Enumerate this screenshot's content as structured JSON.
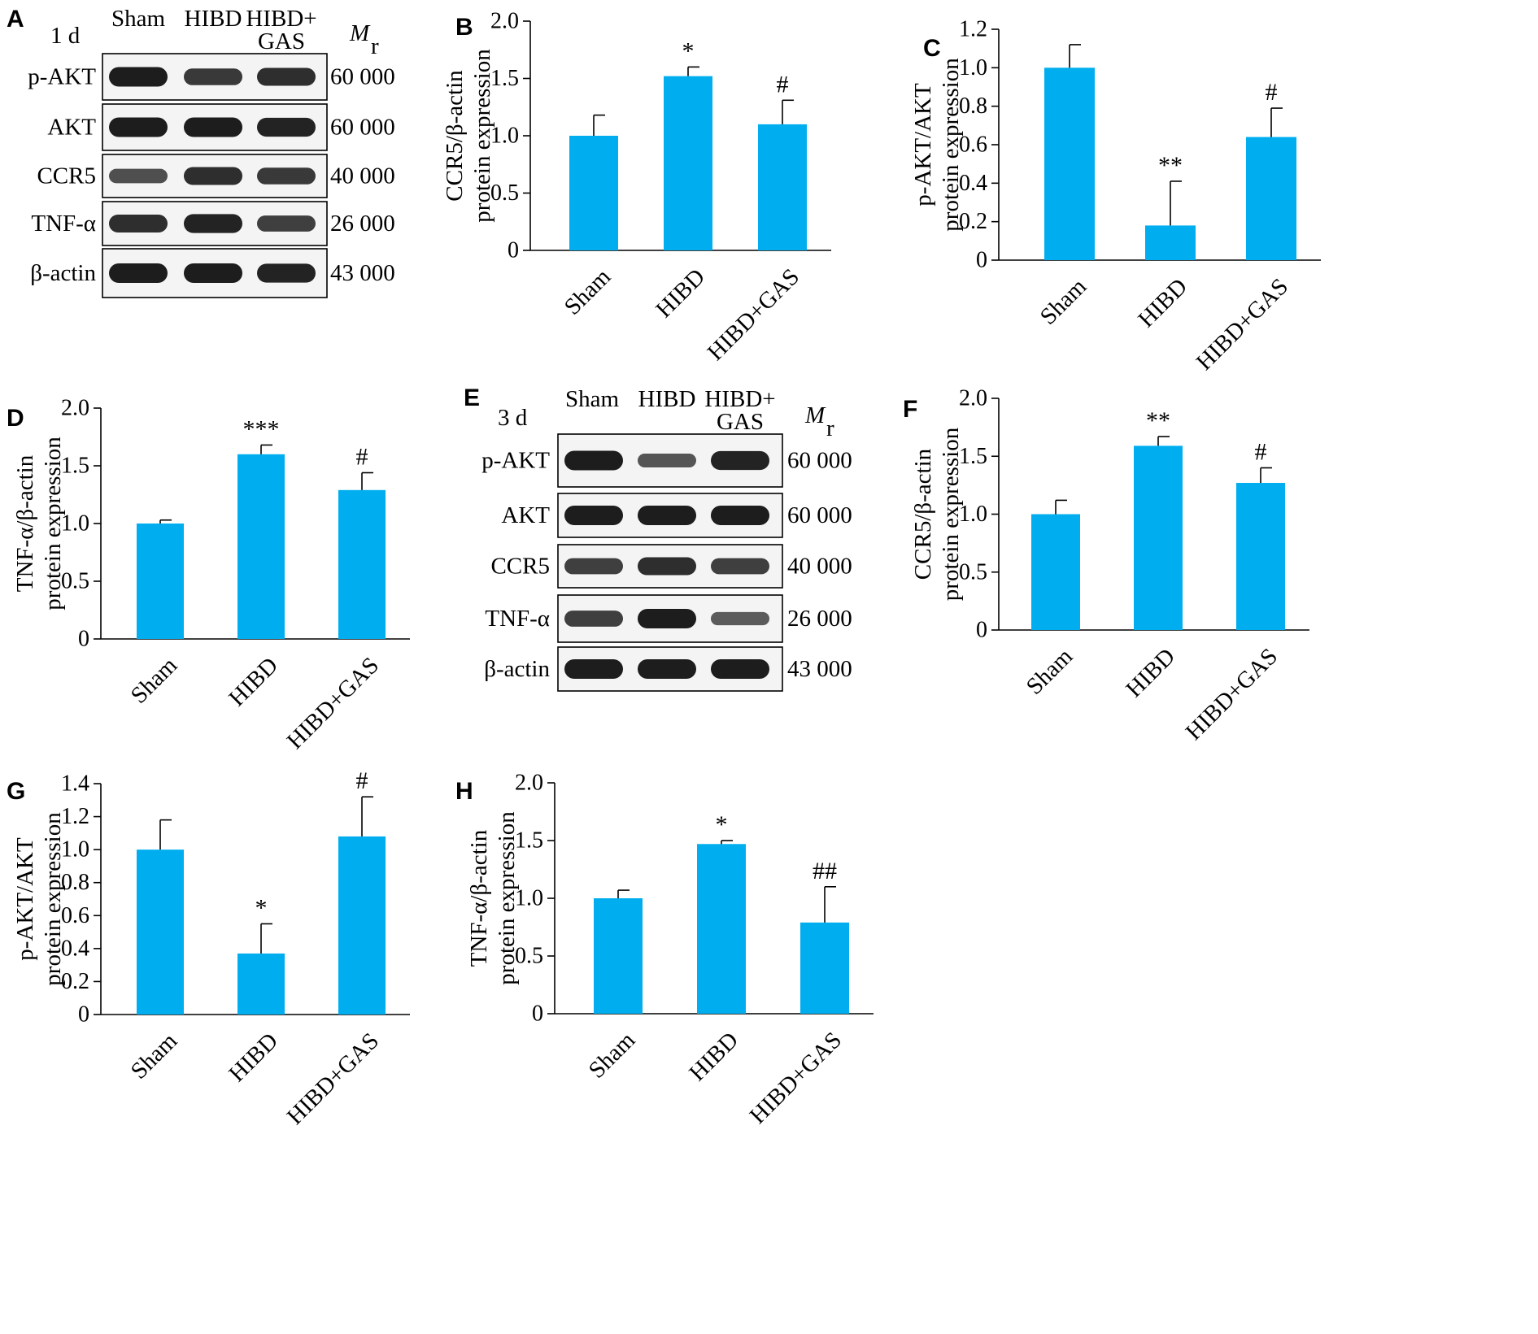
{
  "panel_labels": {
    "A": "A",
    "E": "E"
  },
  "blots": [
    {
      "id": "A",
      "time": "1 d",
      "groups": [
        "Sham",
        "HIBD",
        "HIBD+",
        "GAS"
      ],
      "mr_symbol": "M",
      "mr_sub": "r",
      "rows": [
        {
          "protein": "p-AKT",
          "mr": "60 000"
        },
        {
          "protein": "AKT",
          "mr": "60 000"
        },
        {
          "protein": "CCR5",
          "mr": "40 000"
        },
        {
          "protein": "TNF-α",
          "mr": "26 000"
        },
        {
          "protein": "β-actin",
          "mr": "43 000"
        }
      ]
    },
    {
      "id": "E",
      "time": "3 d",
      "groups": [
        "Sham",
        "HIBD",
        "HIBD+",
        "GAS"
      ],
      "mr_symbol": "M",
      "mr_sub": "r",
      "rows": [
        {
          "protein": "p-AKT",
          "mr": "60 000"
        },
        {
          "protein": "AKT",
          "mr": "60 000"
        },
        {
          "protein": "CCR5",
          "mr": "40 000"
        },
        {
          "protein": "TNF-α",
          "mr": "26 000"
        },
        {
          "protein": "β-actin",
          "mr": "43 000"
        }
      ]
    }
  ],
  "chart_data": [
    {
      "panel": "B",
      "type": "bar",
      "categories": [
        "Sham",
        "HIBD",
        "HIBD+GAS"
      ],
      "values": [
        1.0,
        1.52,
        1.1
      ],
      "errors": [
        0.18,
        0.08,
        0.21
      ],
      "significance": [
        "",
        "*",
        "#"
      ],
      "ylabel": [
        "CCR5/β-actin",
        "protein expression"
      ],
      "ylim": [
        0,
        2.0
      ],
      "yticks": [
        "0",
        "0.5",
        "1.0",
        "1.5",
        "2.0"
      ],
      "ytick_values": [
        0,
        0.5,
        1.0,
        1.5,
        2.0
      ],
      "bar_color": "#00aeef"
    },
    {
      "panel": "C",
      "type": "bar",
      "categories": [
        "Sham",
        "HIBD",
        "HIBD+GAS"
      ],
      "values": [
        1.0,
        0.18,
        0.64
      ],
      "errors": [
        0.12,
        0.23,
        0.15
      ],
      "significance": [
        "",
        "**",
        "#"
      ],
      "ylabel": [
        "p-AKT/AKT",
        "protein expression"
      ],
      "ylim": [
        0,
        1.2
      ],
      "yticks": [
        "0",
        "0.2",
        "0.4",
        "0.6",
        "0.8",
        "1.0",
        "1.2"
      ],
      "ytick_values": [
        0,
        0.2,
        0.4,
        0.6,
        0.8,
        1.0,
        1.2
      ],
      "bar_color": "#00aeef"
    },
    {
      "panel": "D",
      "type": "bar",
      "categories": [
        "Sham",
        "HIBD",
        "HIBD+GAS"
      ],
      "values": [
        1.0,
        1.6,
        1.29
      ],
      "errors": [
        0.03,
        0.08,
        0.15
      ],
      "significance": [
        "",
        "***",
        "#"
      ],
      "ylabel": [
        "TNF-α/β-actin",
        "protein expression"
      ],
      "ylim": [
        0,
        2.0
      ],
      "yticks": [
        "0",
        "0.5",
        "1.0",
        "1.5",
        "2.0"
      ],
      "ytick_values": [
        0,
        0.5,
        1.0,
        1.5,
        2.0
      ],
      "bar_color": "#00aeef"
    },
    {
      "panel": "F",
      "type": "bar",
      "categories": [
        "Sham",
        "HIBD",
        "HIBD+GAS"
      ],
      "values": [
        1.0,
        1.59,
        1.27
      ],
      "errors": [
        0.12,
        0.08,
        0.13
      ],
      "significance": [
        "",
        "**",
        "#"
      ],
      "ylabel": [
        "CCR5/β-actin",
        "protein expression"
      ],
      "ylim": [
        0,
        2.0
      ],
      "yticks": [
        "0",
        "0.5",
        "1.0",
        "1.5",
        "2.0"
      ],
      "ytick_values": [
        0,
        0.5,
        1.0,
        1.5,
        2.0
      ],
      "bar_color": "#00aeef"
    },
    {
      "panel": "G",
      "type": "bar",
      "categories": [
        "Sham",
        "HIBD",
        "HIBD+GAS"
      ],
      "values": [
        1.0,
        0.37,
        1.08
      ],
      "errors": [
        0.18,
        0.18,
        0.24
      ],
      "significance": [
        "",
        "*",
        "#"
      ],
      "ylabel": [
        "p-AKT/AKT",
        "protein expression"
      ],
      "ylim": [
        0,
        1.4
      ],
      "yticks": [
        "0",
        "0.2",
        "0.4",
        "0.6",
        "0.8",
        "1.0",
        "1.2",
        "1.4"
      ],
      "ytick_values": [
        0,
        0.2,
        0.4,
        0.6,
        0.8,
        1.0,
        1.2,
        1.4
      ],
      "bar_color": "#00aeef"
    },
    {
      "panel": "H",
      "type": "bar",
      "categories": [
        "Sham",
        "HIBD",
        "HIBD+GAS"
      ],
      "values": [
        1.0,
        1.47,
        0.79
      ],
      "errors": [
        0.07,
        0.03,
        0.31
      ],
      "significance": [
        "",
        "*",
        "##"
      ],
      "ylabel": [
        "TNF-α/β-actin",
        "protein expression"
      ],
      "ylim": [
        0,
        2.0
      ],
      "yticks": [
        "0",
        "0.5",
        "1.0",
        "1.5",
        "2.0"
      ],
      "ytick_values": [
        0,
        0.5,
        1.0,
        1.5,
        2.0
      ],
      "bar_color": "#00aeef"
    }
  ]
}
